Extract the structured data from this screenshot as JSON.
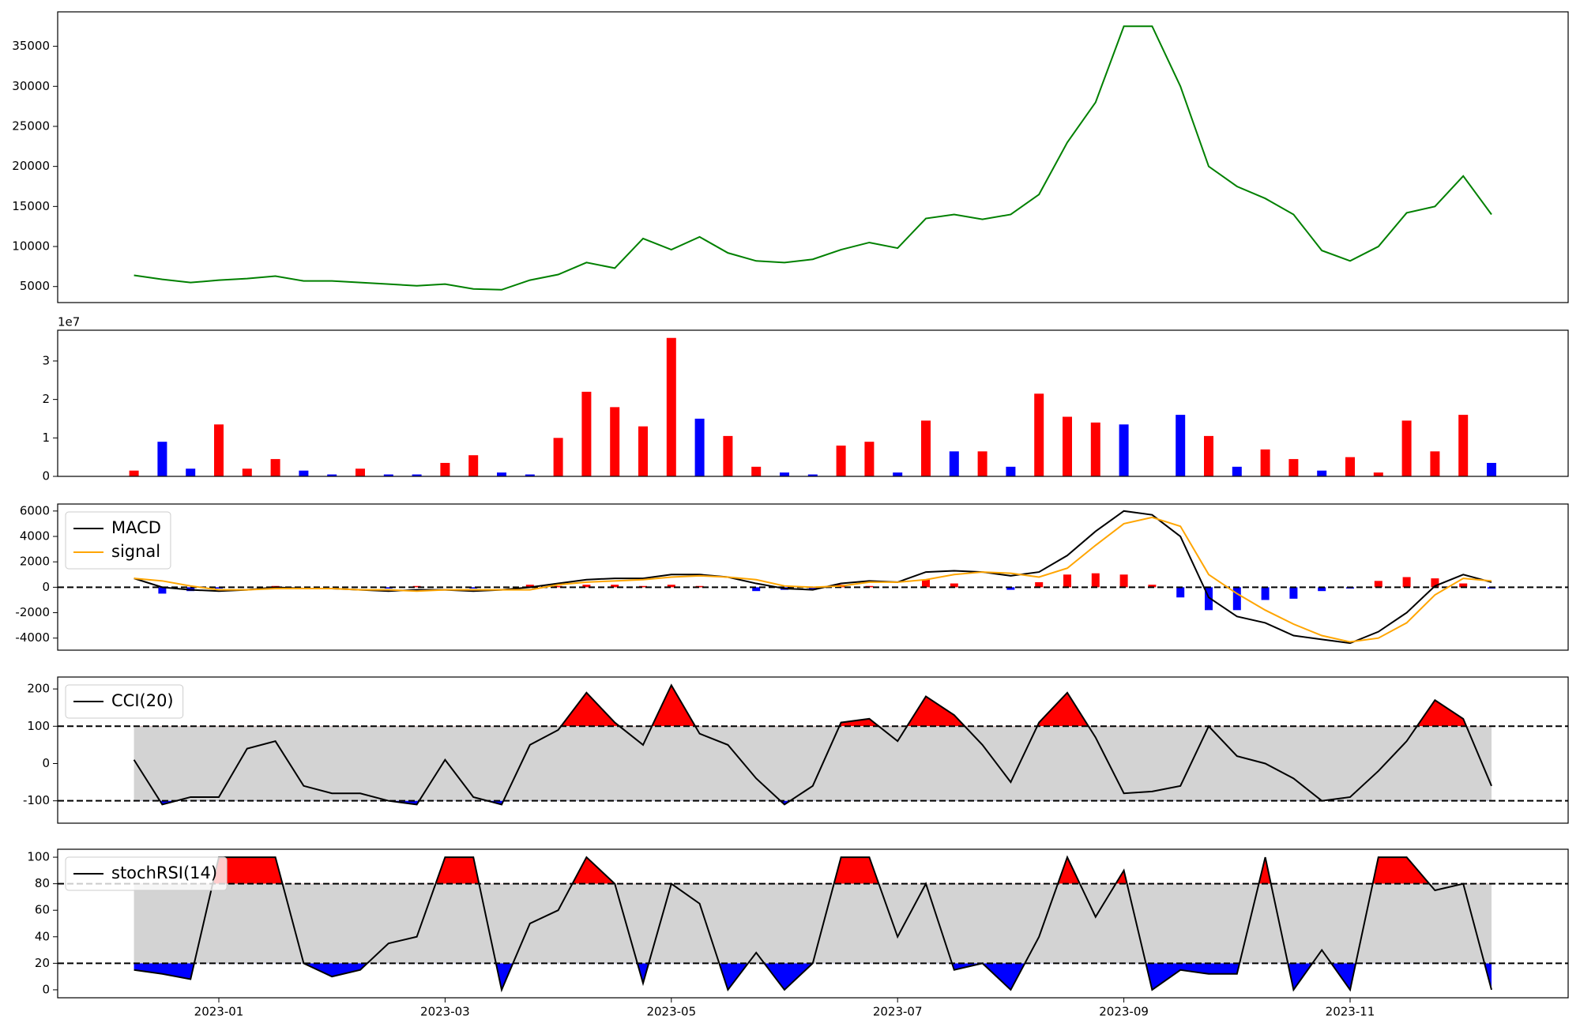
{
  "chart_data": [
    {
      "type": "line",
      "color": "green",
      "values": [
        6400,
        5900,
        5500,
        5800,
        6000,
        6300,
        5700,
        5700,
        5500,
        5300,
        5100,
        5300,
        4700,
        4600,
        5800,
        6500,
        8000,
        7300,
        11000,
        9600,
        11200,
        9200,
        8200,
        8000,
        8400,
        9600,
        10500,
        9800,
        13500,
        14000,
        13400,
        14000,
        16500,
        23000,
        28000,
        37500,
        37500,
        30000,
        20000,
        17500,
        16000,
        14000,
        9500,
        8200,
        10000,
        14200,
        15000,
        18800,
        14000
      ],
      "ylim": [
        3000,
        39300
      ],
      "yticks": [
        5000,
        10000,
        15000,
        20000,
        25000,
        30000,
        35000
      ],
      "grid": false
    },
    {
      "type": "bar",
      "offset_label": "1e7",
      "values": [
        0.15,
        0.9,
        0.2,
        1.35,
        0.2,
        0.45,
        0.15,
        0.05,
        0.2,
        0.05,
        0.05,
        0.35,
        0.55,
        0.1,
        0.05,
        1.0,
        2.2,
        1.8,
        1.3,
        3.6,
        1.5,
        1.05,
        0.25,
        0.1,
        0.05,
        0.8,
        0.9,
        0.1,
        1.45,
        0.65,
        0.65,
        0.25,
        2.15,
        1.55,
        1.4,
        1.35,
        null,
        1.6,
        1.05,
        0.25,
        0.7,
        0.45,
        0.15,
        0.5,
        0.1,
        1.45,
        0.65,
        1.6,
        0.35
      ],
      "colors": [
        "red",
        "blue",
        "blue",
        "red",
        "red",
        "red",
        "blue",
        "blue",
        "red",
        "blue",
        "blue",
        "red",
        "red",
        "blue",
        "blue",
        "red",
        "red",
        "red",
        "red",
        "red",
        "blue",
        "red",
        "red",
        "blue",
        "blue",
        "red",
        "red",
        "blue",
        "red",
        "blue",
        "red",
        "blue",
        "red",
        "red",
        "red",
        "blue",
        null,
        "blue",
        "red",
        "blue",
        "red",
        "red",
        "blue",
        "red",
        "red",
        "red",
        "red",
        "red",
        "blue"
      ],
      "ylim": [
        0,
        3.8
      ],
      "yticks": [
        0,
        1,
        2,
        3
      ],
      "grid": false
    },
    {
      "type": "line",
      "legend": "upper left",
      "series": [
        {
          "name": "MACD",
          "color": "black",
          "values": [
            700,
            0,
            -200,
            -300,
            -200,
            0,
            -100,
            -100,
            -200,
            -300,
            -200,
            -200,
            -300,
            -200,
            0,
            300,
            600,
            700,
            700,
            1000,
            1000,
            800,
            300,
            -100,
            -200,
            300,
            500,
            400,
            1200,
            1300,
            1200,
            900,
            1200,
            2500,
            4400,
            6000,
            5700,
            4000,
            -800,
            -2300,
            -2800,
            -3800,
            -4100,
            -4400,
            -3500,
            -2000,
            100,
            1000,
            400
          ]
        },
        {
          "name": "signal",
          "color": "orange",
          "values": [
            700,
            500,
            100,
            -200,
            -200,
            -100,
            -100,
            -100,
            -200,
            -200,
            -300,
            -200,
            -200,
            -200,
            -200,
            200,
            400,
            500,
            600,
            800,
            900,
            800,
            600,
            100,
            0,
            100,
            400,
            400,
            600,
            1000,
            1200,
            1100,
            800,
            1500,
            3300,
            5000,
            5500,
            4800,
            1000,
            -500,
            -1800,
            -2900,
            -3800,
            -4300,
            -4000,
            -2800,
            -600,
            700,
            500
          ]
        }
      ],
      "histogram": {
        "pos_color": "red",
        "neg_color": "blue",
        "values": [
          0,
          -500,
          -300,
          -100,
          0,
          100,
          0,
          0,
          0,
          -100,
          100,
          0,
          -100,
          0,
          200,
          100,
          200,
          200,
          100,
          200,
          100,
          0,
          -300,
          -200,
          -200,
          200,
          100,
          0,
          600,
          300,
          0,
          -200,
          400,
          1000,
          1100,
          1000,
          200,
          -800,
          -1800,
          -1800,
          -1000,
          -900,
          -300,
          -100,
          500,
          800,
          700,
          300,
          -100
        ]
      },
      "levels": [
        0
      ],
      "ylim": [
        -4950,
        6550
      ],
      "yticks": [
        -4000,
        -2000,
        0,
        2000,
        4000,
        6000
      ],
      "grid": false
    },
    {
      "type": "line",
      "legend": "upper left",
      "series": [
        {
          "name": "CCI(20)",
          "color": "black",
          "values": [
            10,
            -110,
            -90,
            -90,
            40,
            60,
            -60,
            -80,
            -80,
            -100,
            -110,
            10,
            -90,
            -110,
            50,
            90,
            190,
            110,
            50,
            210,
            80,
            50,
            -40,
            -110,
            -60,
            110,
            120,
            60,
            180,
            130,
            50,
            -50,
            110,
            190,
            70,
            -80,
            -75,
            -60,
            100,
            20,
            0,
            -40,
            -100,
            -90,
            -20,
            60,
            170,
            120,
            -60
          ]
        }
      ],
      "levels": [
        -100,
        100
      ],
      "band_color": "lightgray",
      "above_color": "red",
      "below_color": "blue",
      "ylim": [
        -160,
        232
      ],
      "yticks": [
        -100,
        0,
        100,
        200
      ],
      "grid": false
    },
    {
      "type": "line",
      "legend": "upper left",
      "series": [
        {
          "name": "stochRSI(14)",
          "color": "black",
          "values": [
            15,
            12,
            8,
            100,
            100,
            100,
            20,
            10,
            15,
            35,
            40,
            100,
            100,
            0,
            50,
            60,
            100,
            80,
            5,
            80,
            65,
            0,
            28,
            0,
            20,
            100,
            100,
            40,
            80,
            15,
            20,
            0,
            40,
            100,
            55,
            90,
            0,
            15,
            12,
            12,
            100,
            0,
            30,
            0,
            100,
            100,
            75,
            80,
            0
          ]
        }
      ],
      "levels": [
        20,
        80
      ],
      "band_color": "lightgray",
      "above_color": "red",
      "below_color": "blue",
      "ylim": [
        -6,
        106
      ],
      "yticks": [
        0,
        20,
        40,
        60,
        80,
        100
      ],
      "grid": false,
      "categories": [
        null,
        null,
        null,
        "2023-01",
        null,
        null,
        null,
        null,
        null,
        null,
        null,
        "2023-03",
        null,
        null,
        null,
        null,
        null,
        null,
        null,
        "2023-05",
        null,
        null,
        null,
        null,
        null,
        null,
        null,
        "2023-07",
        null,
        null,
        null,
        null,
        null,
        null,
        null,
        "2023-09",
        null,
        null,
        null,
        null,
        null,
        null,
        null,
        "2023-11",
        null,
        null,
        null,
        null,
        null
      ]
    }
  ]
}
